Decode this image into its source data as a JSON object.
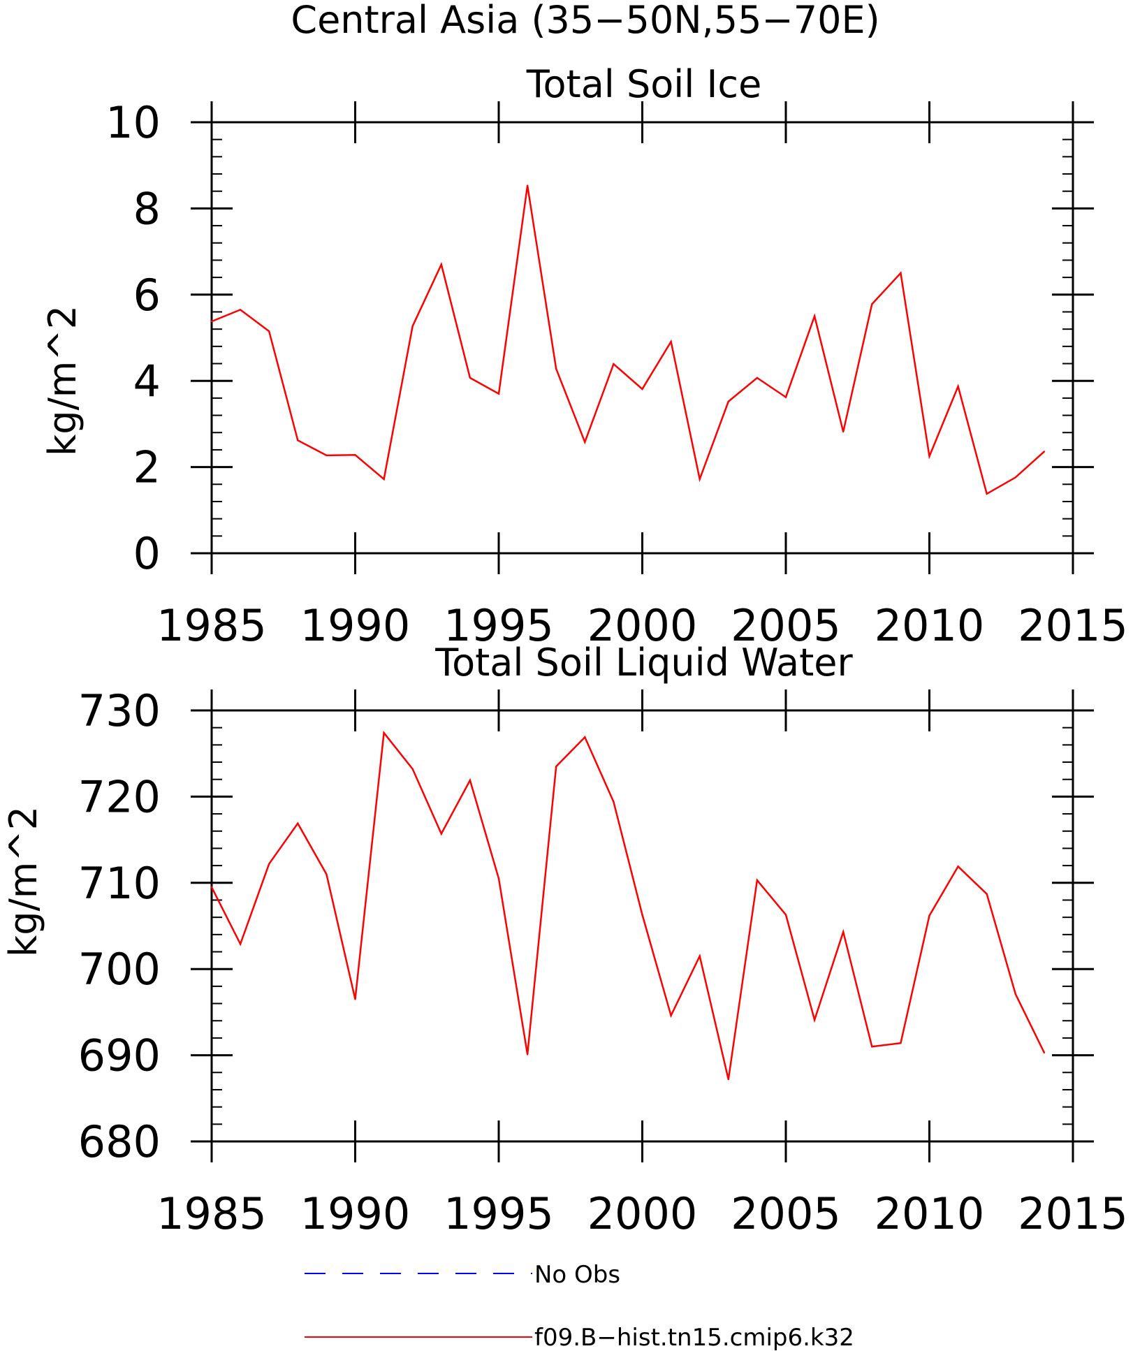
{
  "figure": {
    "title": "Central Asia (35−50N,55−70E)"
  },
  "legend": {
    "placement": "bottom-center",
    "entries": [
      {
        "label": "No Obs",
        "color": "#0000ff",
        "style": "dashed"
      },
      {
        "label": "f09.B−hist.tn15.cmip6.k32",
        "color": "#ff0000",
        "style": "solid"
      }
    ]
  },
  "chart_data": [
    {
      "type": "line",
      "title": "Total Soil Ice",
      "xlabel": "",
      "ylabel": "kg/m^2",
      "xlim": [
        1985,
        2015
      ],
      "ylim": [
        0,
        10
      ],
      "x_ticks": [
        "1985",
        "1990",
        "1995",
        "2000",
        "2005",
        "2010",
        "2015"
      ],
      "y_ticks": [
        "0",
        "2",
        "4",
        "6",
        "8",
        "10"
      ],
      "grid": false,
      "series": [
        {
          "color": "#ff0000",
          "x": [
            1985,
            1986,
            1987,
            1988,
            1989,
            1990,
            1991,
            1992,
            1993,
            1994,
            1995,
            1996,
            1997,
            1998,
            1999,
            2000,
            2001,
            2002,
            2003,
            2004,
            2005,
            2006,
            2007,
            2008,
            2009,
            2010,
            2011,
            2012,
            2013,
            2014
          ],
          "values": [
            5.38,
            5.65,
            5.15,
            2.62,
            2.27,
            2.28,
            1.72,
            5.27,
            6.7,
            4.07,
            3.7,
            8.53,
            4.28,
            2.58,
            4.39,
            3.81,
            4.91,
            1.72,
            3.52,
            4.07,
            3.62,
            5.5,
            2.82,
            5.78,
            6.5,
            2.25,
            3.87,
            1.38,
            1.76,
            2.36
          ]
        }
      ]
    },
    {
      "type": "line",
      "title": "Total Soil Liquid Water",
      "xlabel": "",
      "ylabel": "kg/m^2",
      "xlim": [
        1985,
        2015
      ],
      "ylim": [
        680,
        730
      ],
      "x_ticks": [
        "1985",
        "1990",
        "1995",
        "2000",
        "2005",
        "2010",
        "2015"
      ],
      "y_ticks": [
        "680",
        "690",
        "700",
        "710",
        "720",
        "730"
      ],
      "grid": false,
      "series": [
        {
          "color": "#ff0000",
          "x": [
            1985,
            1986,
            1987,
            1988,
            1989,
            1990,
            1991,
            1992,
            1993,
            1994,
            1995,
            1996,
            1997,
            1998,
            1999,
            2000,
            2001,
            2002,
            2003,
            2004,
            2005,
            2006,
            2007,
            2008,
            2009,
            2010,
            2011,
            2012,
            2013,
            2014
          ],
          "values": [
            709.5,
            702.9,
            712.2,
            716.9,
            711.0,
            696.5,
            727.4,
            723.2,
            715.7,
            721.9,
            710.5,
            690.1,
            723.5,
            726.9,
            719.4,
            706.3,
            694.6,
            701.5,
            687.2,
            710.3,
            706.3,
            694.1,
            704.3,
            691.0,
            691.4,
            706.2,
            711.9,
            708.7,
            697.1,
            690.3
          ]
        }
      ]
    }
  ]
}
